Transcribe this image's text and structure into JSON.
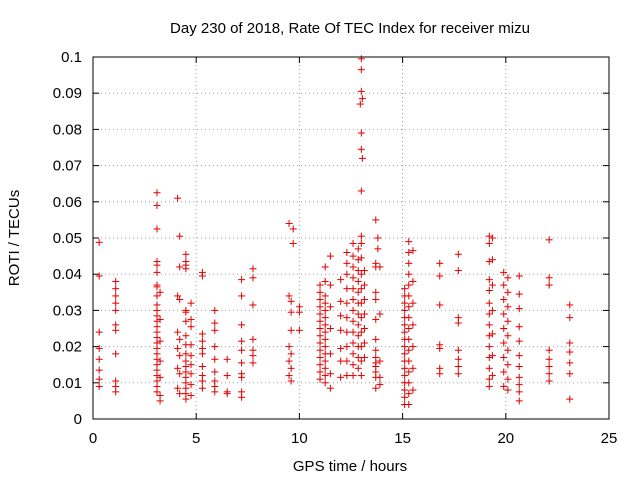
{
  "chart_data": {
    "type": "scatter",
    "title": "Day 230 of 2018, Rate Of TEC Index for receiver mizu",
    "xlabel": "GPS time / hours",
    "ylabel": "ROTI / TECUs",
    "xlim": [
      0,
      25
    ],
    "ylim": [
      0,
      0.1
    ],
    "xticks": [
      "0",
      "5",
      "10",
      "15",
      "20",
      "25"
    ],
    "yticks": [
      "0",
      "0.01",
      "0.02",
      "0.03",
      "0.04",
      "0.05",
      "0.06",
      "0.07",
      "0.08",
      "0.09",
      "0.1"
    ],
    "grid": true,
    "marker": "plus",
    "color": "#e00000",
    "points": [
      [
        0.3,
        0.0488
      ],
      [
        0.3,
        0.0395
      ],
      [
        0.3,
        0.024
      ],
      [
        0.3,
        0.0195
      ],
      [
        0.3,
        0.0165
      ],
      [
        0.3,
        0.0135
      ],
      [
        0.3,
        0.011
      ],
      [
        0.3,
        0.009
      ],
      [
        1.1,
        0.038
      ],
      [
        1.1,
        0.036
      ],
      [
        1.1,
        0.034
      ],
      [
        1.1,
        0.032
      ],
      [
        1.1,
        0.03
      ],
      [
        1.1,
        0.026
      ],
      [
        1.1,
        0.0245
      ],
      [
        1.1,
        0.018
      ],
      [
        1.1,
        0.0105
      ],
      [
        1.1,
        0.009
      ],
      [
        1.1,
        0.0075
      ],
      [
        3.1,
        0.0625
      ],
      [
        3.1,
        0.059
      ],
      [
        3.1,
        0.0525
      ],
      [
        3.1,
        0.0435
      ],
      [
        3.1,
        0.0425
      ],
      [
        3.1,
        0.0405
      ],
      [
        3.1,
        0.037
      ],
      [
        3.1,
        0.0365
      ],
      [
        3.1,
        0.034
      ],
      [
        3.1,
        0.0315
      ],
      [
        3.1,
        0.03
      ],
      [
        3.1,
        0.0285
      ],
      [
        3.1,
        0.027
      ],
      [
        3.1,
        0.0255
      ],
      [
        3.1,
        0.024
      ],
      [
        3.1,
        0.0225
      ],
      [
        3.1,
        0.021
      ],
      [
        3.1,
        0.0195
      ],
      [
        3.1,
        0.018
      ],
      [
        3.1,
        0.0165
      ],
      [
        3.1,
        0.015
      ],
      [
        3.1,
        0.0135
      ],
      [
        3.1,
        0.012
      ],
      [
        3.1,
        0.0105
      ],
      [
        3.1,
        0.009
      ],
      [
        3.1,
        0.0075
      ],
      [
        3.25,
        0.035
      ],
      [
        3.25,
        0.0275
      ],
      [
        3.25,
        0.0215
      ],
      [
        3.25,
        0.016
      ],
      [
        3.25,
        0.0115
      ],
      [
        3.25,
        0.0065
      ],
      [
        3.25,
        0.005
      ],
      [
        4.1,
        0.061
      ],
      [
        4.2,
        0.0505
      ],
      [
        4.2,
        0.042
      ],
      [
        4.1,
        0.034
      ],
      [
        4.2,
        0.033
      ],
      [
        4.1,
        0.024
      ],
      [
        4.2,
        0.022
      ],
      [
        4.1,
        0.0195
      ],
      [
        4.2,
        0.0175
      ],
      [
        4.1,
        0.014
      ],
      [
        4.2,
        0.0125
      ],
      [
        4.1,
        0.0085
      ],
      [
        4.2,
        0.007
      ],
      [
        4.5,
        0.0455
      ],
      [
        4.5,
        0.0435
      ],
      [
        4.5,
        0.0425
      ],
      [
        4.5,
        0.0415
      ],
      [
        4.5,
        0.03
      ],
      [
        4.5,
        0.0295
      ],
      [
        4.5,
        0.027
      ],
      [
        4.5,
        0.023
      ],
      [
        4.5,
        0.0205
      ],
      [
        4.5,
        0.018
      ],
      [
        4.5,
        0.016
      ],
      [
        4.5,
        0.0145
      ],
      [
        4.5,
        0.013
      ],
      [
        4.5,
        0.0115
      ],
      [
        4.5,
        0.01
      ],
      [
        4.5,
        0.0085
      ],
      [
        4.5,
        0.007
      ],
      [
        4.5,
        0.0055
      ],
      [
        4.75,
        0.032
      ],
      [
        4.75,
        0.0275
      ],
      [
        4.75,
        0.0255
      ],
      [
        4.75,
        0.0205
      ],
      [
        4.75,
        0.0175
      ],
      [
        4.75,
        0.015
      ],
      [
        4.75,
        0.0125
      ],
      [
        4.75,
        0.0095
      ],
      [
        4.75,
        0.0065
      ],
      [
        5.3,
        0.0405
      ],
      [
        5.3,
        0.0395
      ],
      [
        5.3,
        0.0235
      ],
      [
        5.3,
        0.0215
      ],
      [
        5.3,
        0.0195
      ],
      [
        5.3,
        0.018
      ],
      [
        5.3,
        0.0145
      ],
      [
        5.3,
        0.012
      ],
      [
        5.3,
        0.0105
      ],
      [
        5.3,
        0.0085
      ],
      [
        5.9,
        0.03
      ],
      [
        5.9,
        0.0265
      ],
      [
        5.9,
        0.0245
      ],
      [
        5.9,
        0.02
      ],
      [
        5.9,
        0.0165
      ],
      [
        5.9,
        0.013
      ],
      [
        5.9,
        0.0105
      ],
      [
        5.9,
        0.009
      ],
      [
        5.9,
        0.0075
      ],
      [
        6.5,
        0.0165
      ],
      [
        6.5,
        0.012
      ],
      [
        6.5,
        0.0075
      ],
      [
        6.5,
        0.007
      ],
      [
        7.2,
        0.0385
      ],
      [
        7.2,
        0.034
      ],
      [
        7.2,
        0.026
      ],
      [
        7.2,
        0.0215
      ],
      [
        7.2,
        0.019
      ],
      [
        7.2,
        0.0155
      ],
      [
        7.2,
        0.0125
      ],
      [
        7.2,
        0.0115
      ],
      [
        7.2,
        0.0075
      ],
      [
        7.2,
        0.006
      ],
      [
        7.75,
        0.0415
      ],
      [
        7.75,
        0.039
      ],
      [
        7.75,
        0.0315
      ],
      [
        7.75,
        0.022
      ],
      [
        7.75,
        0.019
      ],
      [
        7.75,
        0.0175
      ],
      [
        7.75,
        0.0155
      ],
      [
        9.5,
        0.054
      ],
      [
        9.7,
        0.0525
      ],
      [
        9.7,
        0.0485
      ],
      [
        9.5,
        0.034
      ],
      [
        9.6,
        0.0325
      ],
      [
        9.6,
        0.0295
      ],
      [
        9.6,
        0.0245
      ],
      [
        9.5,
        0.02
      ],
      [
        9.6,
        0.018
      ],
      [
        9.5,
        0.016
      ],
      [
        9.6,
        0.014
      ],
      [
        9.5,
        0.012
      ],
      [
        9.6,
        0.0105
      ],
      [
        10.0,
        0.031
      ],
      [
        10.0,
        0.0295
      ],
      [
        10.0,
        0.0245
      ],
      [
        11.0,
        0.037
      ],
      [
        11.0,
        0.035
      ],
      [
        11.0,
        0.033
      ],
      [
        11.0,
        0.031
      ],
      [
        11.0,
        0.029
      ],
      [
        11.0,
        0.027
      ],
      [
        11.0,
        0.025
      ],
      [
        11.0,
        0.023
      ],
      [
        11.0,
        0.021
      ],
      [
        11.0,
        0.019
      ],
      [
        11.0,
        0.017
      ],
      [
        11.0,
        0.015
      ],
      [
        11.0,
        0.013
      ],
      [
        11.0,
        0.011
      ],
      [
        11.25,
        0.042
      ],
      [
        11.25,
        0.038
      ],
      [
        11.25,
        0.034
      ],
      [
        11.25,
        0.032
      ],
      [
        11.25,
        0.03
      ],
      [
        11.25,
        0.028
      ],
      [
        11.25,
        0.026
      ],
      [
        11.25,
        0.024
      ],
      [
        11.25,
        0.022
      ],
      [
        11.25,
        0.02
      ],
      [
        11.25,
        0.018
      ],
      [
        11.25,
        0.016
      ],
      [
        11.25,
        0.014
      ],
      [
        11.25,
        0.012
      ],
      [
        11.25,
        0.01
      ],
      [
        11.5,
        0.045
      ],
      [
        11.5,
        0.037
      ],
      [
        11.5,
        0.031
      ],
      [
        11.5,
        0.025
      ],
      [
        11.5,
        0.018
      ],
      [
        11.5,
        0.0125
      ],
      [
        11.5,
        0.0085
      ],
      [
        12.0,
        0.0385
      ],
      [
        12.0,
        0.0325
      ],
      [
        12.0,
        0.0285
      ],
      [
        12.0,
        0.0245
      ],
      [
        12.0,
        0.0195
      ],
      [
        12.0,
        0.016
      ],
      [
        12.0,
        0.0115
      ],
      [
        12.3,
        0.046
      ],
      [
        12.3,
        0.043
      ],
      [
        12.3,
        0.04
      ],
      [
        12.3,
        0.036
      ],
      [
        12.3,
        0.032
      ],
      [
        12.3,
        0.028
      ],
      [
        12.3,
        0.024
      ],
      [
        12.3,
        0.02
      ],
      [
        12.3,
        0.016
      ],
      [
        12.3,
        0.012
      ],
      [
        12.6,
        0.0485
      ],
      [
        12.6,
        0.045
      ],
      [
        12.6,
        0.042
      ],
      [
        12.6,
        0.039
      ],
      [
        12.6,
        0.036
      ],
      [
        12.6,
        0.033
      ],
      [
        12.6,
        0.03
      ],
      [
        12.6,
        0.027
      ],
      [
        12.6,
        0.024
      ],
      [
        12.6,
        0.021
      ],
      [
        12.6,
        0.018
      ],
      [
        12.6,
        0.015
      ],
      [
        12.6,
        0.012
      ],
      [
        12.85,
        0.047
      ],
      [
        12.85,
        0.044
      ],
      [
        12.85,
        0.041
      ],
      [
        12.85,
        0.038
      ],
      [
        12.85,
        0.035
      ],
      [
        12.85,
        0.032
      ],
      [
        12.85,
        0.029
      ],
      [
        12.85,
        0.026
      ],
      [
        12.85,
        0.023
      ],
      [
        12.85,
        0.02
      ],
      [
        12.85,
        0.017
      ],
      [
        12.85,
        0.014
      ],
      [
        13.0,
        0.0995
      ],
      [
        13.0,
        0.0965
      ],
      [
        13.0,
        0.0905
      ],
      [
        13.05,
        0.0885
      ],
      [
        12.95,
        0.087
      ],
      [
        13.0,
        0.079
      ],
      [
        13.0,
        0.0745
      ],
      [
        13.05,
        0.072
      ],
      [
        13.0,
        0.063
      ],
      [
        13.0,
        0.0505
      ],
      [
        13.0,
        0.0485
      ],
      [
        13.0,
        0.0445
      ],
      [
        13.0,
        0.04
      ],
      [
        13.0,
        0.036
      ],
      [
        13.0,
        0.032
      ],
      [
        13.0,
        0.028
      ],
      [
        13.0,
        0.024
      ],
      [
        13.0,
        0.02
      ],
      [
        13.0,
        0.016
      ],
      [
        13.0,
        0.012
      ],
      [
        13.15,
        0.041
      ],
      [
        13.15,
        0.037
      ],
      [
        13.15,
        0.033
      ],
      [
        13.15,
        0.029
      ],
      [
        13.15,
        0.025
      ],
      [
        13.15,
        0.021
      ],
      [
        13.15,
        0.017
      ],
      [
        13.7,
        0.055
      ],
      [
        13.8,
        0.05
      ],
      [
        13.8,
        0.047
      ],
      [
        13.7,
        0.043
      ],
      [
        13.7,
        0.042
      ],
      [
        13.7,
        0.035
      ],
      [
        13.7,
        0.033
      ],
      [
        13.7,
        0.0275
      ],
      [
        13.7,
        0.022
      ],
      [
        13.7,
        0.019
      ],
      [
        13.7,
        0.017
      ],
      [
        13.7,
        0.0155
      ],
      [
        13.7,
        0.0145
      ],
      [
        13.7,
        0.013
      ],
      [
        13.7,
        0.0115
      ],
      [
        13.7,
        0.0085
      ],
      [
        13.9,
        0.042
      ],
      [
        13.9,
        0.029
      ],
      [
        13.9,
        0.016
      ],
      [
        13.9,
        0.0115
      ],
      [
        13.9,
        0.0095
      ],
      [
        15.1,
        0.036
      ],
      [
        15.1,
        0.034
      ],
      [
        15.1,
        0.032
      ],
      [
        15.1,
        0.03
      ],
      [
        15.1,
        0.028
      ],
      [
        15.1,
        0.026
      ],
      [
        15.1,
        0.024
      ],
      [
        15.1,
        0.022
      ],
      [
        15.1,
        0.02
      ],
      [
        15.1,
        0.018
      ],
      [
        15.1,
        0.016
      ],
      [
        15.1,
        0.014
      ],
      [
        15.1,
        0.012
      ],
      [
        15.1,
        0.01
      ],
      [
        15.1,
        0.008
      ],
      [
        15.1,
        0.006
      ],
      [
        15.1,
        0.004
      ],
      [
        15.3,
        0.049
      ],
      [
        15.3,
        0.046
      ],
      [
        15.3,
        0.043
      ],
      [
        15.3,
        0.04
      ],
      [
        15.3,
        0.037
      ],
      [
        15.3,
        0.034
      ],
      [
        15.3,
        0.031
      ],
      [
        15.3,
        0.028
      ],
      [
        15.3,
        0.025
      ],
      [
        15.3,
        0.022
      ],
      [
        15.3,
        0.019
      ],
      [
        15.3,
        0.016
      ],
      [
        15.3,
        0.013
      ],
      [
        15.3,
        0.01
      ],
      [
        15.3,
        0.007
      ],
      [
        15.3,
        0.004
      ],
      [
        15.5,
        0.0465
      ],
      [
        15.5,
        0.038
      ],
      [
        15.5,
        0.032
      ],
      [
        15.5,
        0.026
      ],
      [
        15.5,
        0.02
      ],
      [
        15.5,
        0.014
      ],
      [
        15.5,
        0.008
      ],
      [
        16.8,
        0.043
      ],
      [
        16.8,
        0.0395
      ],
      [
        16.8,
        0.0315
      ],
      [
        16.8,
        0.0205
      ],
      [
        16.8,
        0.0195
      ],
      [
        16.8,
        0.014
      ],
      [
        16.8,
        0.0125
      ],
      [
        17.7,
        0.0455
      ],
      [
        17.7,
        0.041
      ],
      [
        17.7,
        0.028
      ],
      [
        17.7,
        0.0265
      ],
      [
        17.7,
        0.019
      ],
      [
        17.7,
        0.0165
      ],
      [
        17.7,
        0.0145
      ],
      [
        17.7,
        0.0125
      ],
      [
        19.2,
        0.0505
      ],
      [
        19.2,
        0.0485
      ],
      [
        19.2,
        0.0435
      ],
      [
        19.2,
        0.0385
      ],
      [
        19.2,
        0.0355
      ],
      [
        19.2,
        0.032
      ],
      [
        19.2,
        0.029
      ],
      [
        19.2,
        0.026
      ],
      [
        19.2,
        0.023
      ],
      [
        19.2,
        0.02
      ],
      [
        19.2,
        0.017
      ],
      [
        19.2,
        0.014
      ],
      [
        19.2,
        0.011
      ],
      [
        19.2,
        0.009
      ],
      [
        19.35,
        0.05
      ],
      [
        19.35,
        0.044
      ],
      [
        19.35,
        0.037
      ],
      [
        19.35,
        0.03
      ],
      [
        19.35,
        0.0235
      ],
      [
        19.35,
        0.0175
      ],
      [
        19.35,
        0.012
      ],
      [
        19.9,
        0.0405
      ],
      [
        19.9,
        0.037
      ],
      [
        19.9,
        0.033
      ],
      [
        19.9,
        0.029
      ],
      [
        19.9,
        0.025
      ],
      [
        19.9,
        0.021
      ],
      [
        19.9,
        0.017
      ],
      [
        19.9,
        0.013
      ],
      [
        19.9,
        0.009
      ],
      [
        20.1,
        0.039
      ],
      [
        20.1,
        0.035
      ],
      [
        20.1,
        0.031
      ],
      [
        20.1,
        0.027
      ],
      [
        20.1,
        0.023
      ],
      [
        20.1,
        0.019
      ],
      [
        20.1,
        0.015
      ],
      [
        20.1,
        0.011
      ],
      [
        20.1,
        0.008
      ],
      [
        20.65,
        0.0395
      ],
      [
        20.65,
        0.0345
      ],
      [
        20.65,
        0.0305
      ],
      [
        20.65,
        0.0255
      ],
      [
        20.65,
        0.0215
      ],
      [
        20.65,
        0.0175
      ],
      [
        20.65,
        0.0145
      ],
      [
        20.65,
        0.0115
      ],
      [
        20.65,
        0.0095
      ],
      [
        20.65,
        0.0075
      ],
      [
        20.65,
        0.005
      ],
      [
        22.1,
        0.0495
      ],
      [
        22.1,
        0.039
      ],
      [
        22.1,
        0.037
      ],
      [
        22.1,
        0.019
      ],
      [
        22.1,
        0.0165
      ],
      [
        22.1,
        0.0145
      ],
      [
        22.1,
        0.0125
      ],
      [
        22.1,
        0.0105
      ],
      [
        23.1,
        0.0315
      ],
      [
        23.1,
        0.028
      ],
      [
        23.1,
        0.021
      ],
      [
        23.1,
        0.0185
      ],
      [
        23.1,
        0.0155
      ],
      [
        23.1,
        0.0125
      ],
      [
        23.1,
        0.0055
      ]
    ]
  }
}
